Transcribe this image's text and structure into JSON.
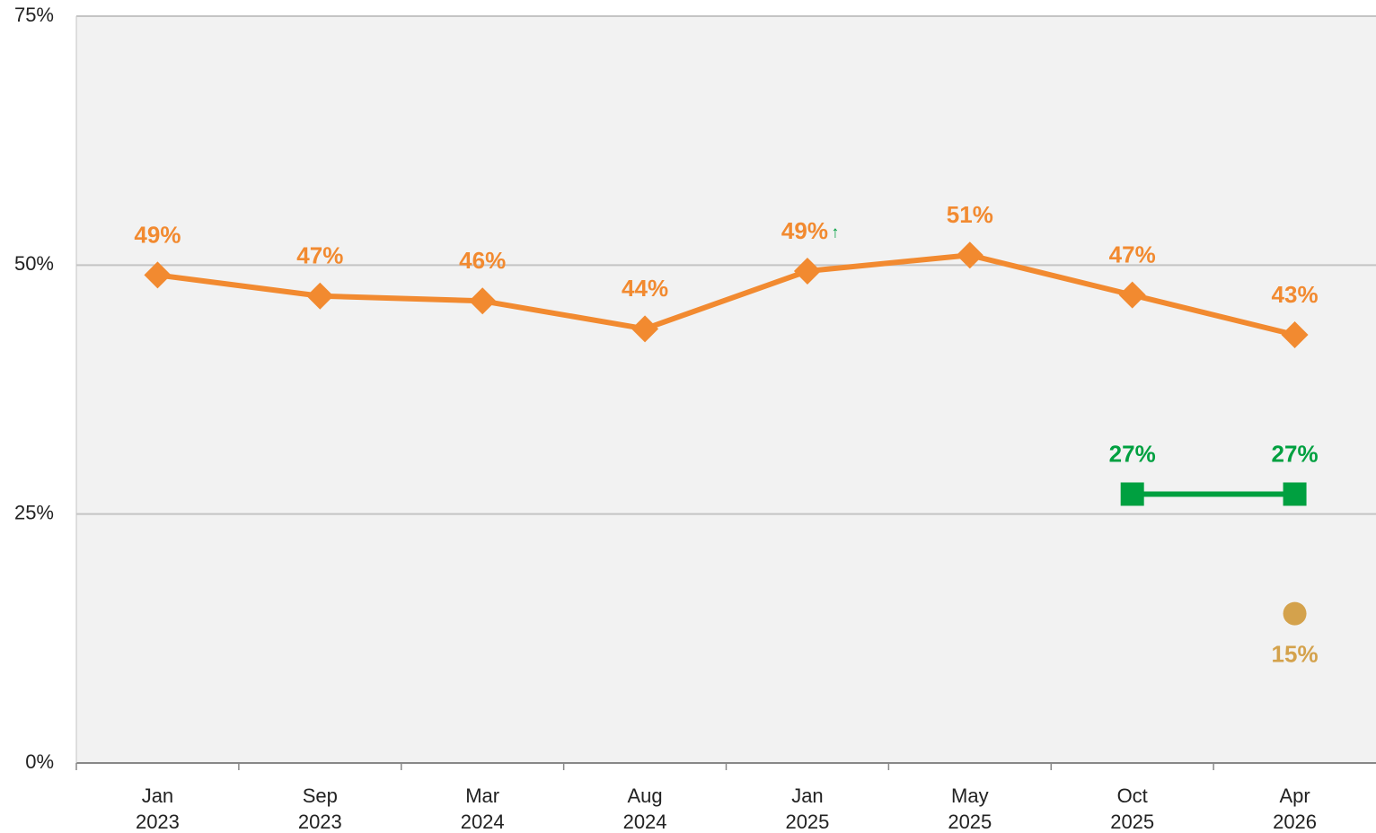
{
  "chart_data": {
    "type": "line",
    "categories": [
      "Jan 2023",
      "Sep 2023",
      "Mar 2024",
      "Aug 2024",
      "Jan 2025",
      "May 2025",
      "Oct 2025",
      "Apr 2026"
    ],
    "series": [
      {
        "color": "#f28a30",
        "marker": "diamond",
        "values": [
          49,
          46.9,
          46.4,
          43.6,
          49.4,
          51,
          47,
          43
        ],
        "value_labels": [
          "49%",
          "47%",
          "46%",
          "44%",
          "49%",
          "51%",
          "47%",
          "43%"
        ]
      },
      {
        "color": "#00a040",
        "marker": "square",
        "values": [
          null,
          null,
          null,
          null,
          null,
          null,
          27,
          27
        ],
        "value_labels": [
          null,
          null,
          null,
          null,
          null,
          null,
          "27%",
          "27%"
        ]
      },
      {
        "color": "#d4a24c",
        "marker": "circle",
        "values": [
          null,
          null,
          null,
          null,
          null,
          null,
          null,
          15
        ],
        "value_labels": [
          null,
          null,
          null,
          null,
          null,
          null,
          null,
          "15%"
        ]
      }
    ],
    "annotation": "↑",
    "ylim": [
      0,
      75
    ],
    "yticks": [
      {
        "value": 0,
        "label": "0%"
      },
      {
        "value": 25,
        "label": "25%"
      },
      {
        "value": 50,
        "label": "50%"
      },
      {
        "value": 75,
        "label": "75%"
      }
    ],
    "grid": true
  }
}
